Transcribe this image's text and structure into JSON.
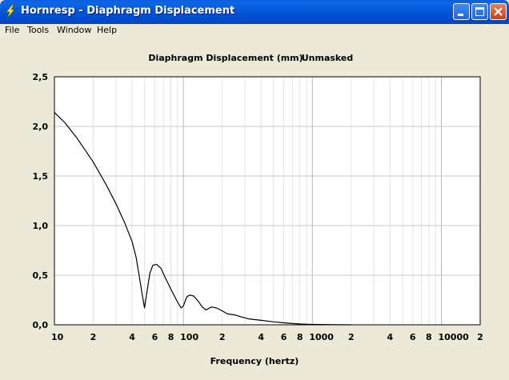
{
  "window": {
    "title": "Hornresp - Diaphragm Displacement",
    "title_bar_color": "#0054e3",
    "icons": [
      "app-lightning-icon",
      "minimize-icon",
      "maximize-icon",
      "close-icon"
    ]
  },
  "menu": {
    "items": [
      "File",
      "Tools",
      "Window",
      "Help"
    ]
  },
  "chart_data": {
    "type": "line",
    "title": "Diaphragm Displacement (mm)",
    "subtitle": "Unmasked",
    "xlabel": "Frequency (hertz)",
    "ylabel": "",
    "xscale": "log",
    "xlim": [
      10,
      20000
    ],
    "ylim": [
      0,
      2.5
    ],
    "grid": true,
    "xticks": [
      {
        "value": 10,
        "label": "10"
      },
      {
        "value": 20,
        "label": "2"
      },
      {
        "value": 40,
        "label": "4"
      },
      {
        "value": 60,
        "label": "6"
      },
      {
        "value": 80,
        "label": "8"
      },
      {
        "value": 100,
        "label": "100"
      },
      {
        "value": 200,
        "label": "2"
      },
      {
        "value": 400,
        "label": "4"
      },
      {
        "value": 600,
        "label": "6"
      },
      {
        "value": 800,
        "label": "8"
      },
      {
        "value": 1000,
        "label": "1000"
      },
      {
        "value": 2000,
        "label": "2"
      },
      {
        "value": 4000,
        "label": "4"
      },
      {
        "value": 6000,
        "label": "6"
      },
      {
        "value": 8000,
        "label": "8"
      },
      {
        "value": 10000,
        "label": "10000"
      },
      {
        "value": 20000,
        "label": "2"
      }
    ],
    "yticks": [
      {
        "value": 0,
        "label": "0,0"
      },
      {
        "value": 0.5,
        "label": "0,5"
      },
      {
        "value": 1.0,
        "label": "1,0"
      },
      {
        "value": 1.5,
        "label": "1,5"
      },
      {
        "value": 2.0,
        "label": "2,0"
      },
      {
        "value": 2.5,
        "label": "2,5"
      }
    ],
    "series": [
      {
        "color": "#000000",
        "points": [
          [
            10,
            2.14
          ],
          [
            12,
            2.04
          ],
          [
            15,
            1.88
          ],
          [
            20,
            1.64
          ],
          [
            25,
            1.42
          ],
          [
            30,
            1.22
          ],
          [
            35,
            1.03
          ],
          [
            40,
            0.84
          ],
          [
            43,
            0.68
          ],
          [
            46,
            0.45
          ],
          [
            48,
            0.3
          ],
          [
            50,
            0.17
          ],
          [
            52,
            0.32
          ],
          [
            55,
            0.52
          ],
          [
            58,
            0.6
          ],
          [
            62,
            0.61
          ],
          [
            67,
            0.57
          ],
          [
            72,
            0.48
          ],
          [
            80,
            0.36
          ],
          [
            90,
            0.23
          ],
          [
            96,
            0.17
          ],
          [
            100,
            0.19
          ],
          [
            106,
            0.28
          ],
          [
            112,
            0.3
          ],
          [
            120,
            0.29
          ],
          [
            130,
            0.24
          ],
          [
            140,
            0.18
          ],
          [
            150,
            0.15
          ],
          [
            165,
            0.18
          ],
          [
            180,
            0.17
          ],
          [
            200,
            0.14
          ],
          [
            220,
            0.11
          ],
          [
            250,
            0.1
          ],
          [
            280,
            0.08
          ],
          [
            320,
            0.06
          ],
          [
            400,
            0.045
          ],
          [
            500,
            0.03
          ],
          [
            600,
            0.02
          ],
          [
            700,
            0.013
          ],
          [
            800,
            0.008
          ],
          [
            1000,
            0.004
          ],
          [
            1500,
            0.001
          ],
          [
            2000,
            0.0
          ]
        ]
      }
    ]
  }
}
